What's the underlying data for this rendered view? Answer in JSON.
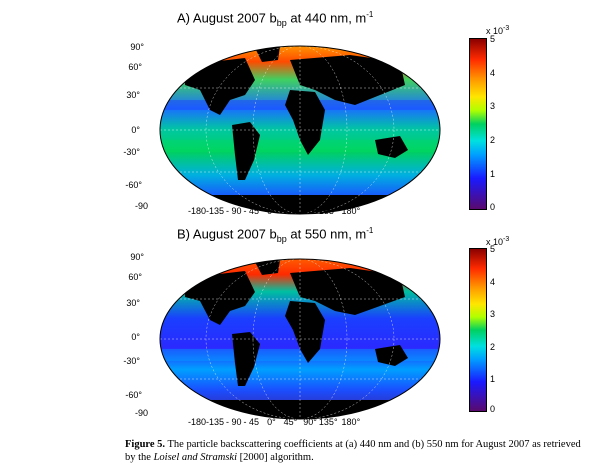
{
  "panel_a": {
    "title_prefix": "A) August 2007 b",
    "title_sub": "bp",
    "title_suffix": " at 440 nm, m",
    "title_sup": "-1",
    "colorbar": {
      "exponent": "x 10",
      "exponent_sup": "-3",
      "ticks": [
        "5",
        "4",
        "3",
        "2",
        "1",
        "0"
      ],
      "range": [
        0,
        5
      ]
    }
  },
  "panel_b": {
    "title_prefix": "B) August 2007 b",
    "title_sub": "bp",
    "title_suffix": " at 550 nm, m",
    "title_sup": "-1",
    "colorbar": {
      "exponent": "x 10",
      "exponent_sup": "-3",
      "ticks": [
        "5",
        "4",
        "3",
        "2",
        "1",
        "0"
      ],
      "range": [
        0,
        5
      ]
    }
  },
  "lat_labels": [
    "90°",
    "60°",
    "30°",
    "0°",
    "-30°",
    "-60°",
    "-90"
  ],
  "lon_labels": [
    "-180",
    "-135",
    "- 90",
    "- 45",
    "0°",
    "45°",
    "90°",
    "135°",
    "180°"
  ],
  "caption": {
    "label": "Figure 5.",
    "text1": " The particle backscattering coefficients at (a) 440 nm and (b) 550 nm for August 2007 as retrieved by the ",
    "italic": "Loisel and Stramski",
    "text2": " [2000] algorithm."
  },
  "colors": {
    "land": "#000000",
    "ocean_low": "#1a4fff",
    "ocean_mid": "#00d060",
    "ocean_high": "#ff2a00"
  }
}
